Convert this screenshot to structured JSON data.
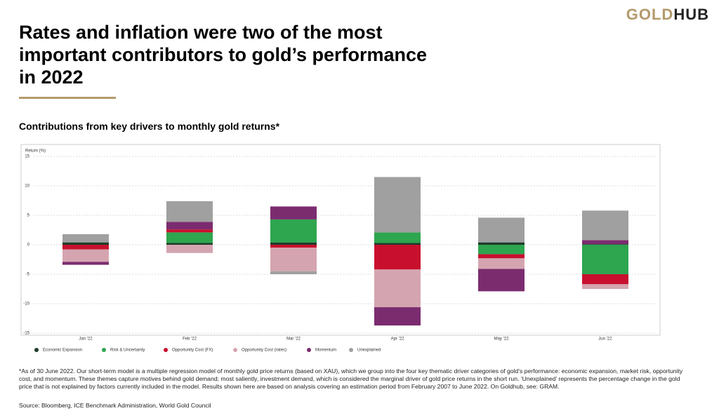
{
  "header": {
    "logo_gold": "GOLD",
    "logo_hub": "HUB",
    "title": "Rates and inflation were two of the most important contributors to gold’s performance in 2022"
  },
  "chart_data": {
    "type": "bar",
    "stacked": true,
    "title": "Contributions from key drivers to monthly gold returns*",
    "y_label": "Return (%)",
    "categories": [
      "Jan '22",
      "Feb '22",
      "Mar '22",
      "Apr '22",
      "May '22",
      "Jun '22"
    ],
    "series": [
      {
        "name": "Economic Expansion",
        "color": "#1d3b29",
        "values": [
          0.4,
          0.3,
          0.4,
          0.3,
          0.4,
          0.1
        ]
      },
      {
        "name": "Risk & Uncertainty",
        "color": "#2ea54f",
        "values": [
          0,
          1.8,
          3.9,
          1.8,
          -1.6,
          -5.0
        ]
      },
      {
        "name": "Opportunity Cost (FX)",
        "color": "#c8102e",
        "values": [
          -0.8,
          0.5,
          -0.5,
          -4.2,
          -0.7,
          -1.7
        ]
      },
      {
        "name": "Opportunity Cost (rates)",
        "color": "#d4a5b0",
        "values": [
          -2.1,
          -1.4,
          -4.0,
          -6.4,
          -1.8,
          -0.8
        ]
      },
      {
        "name": "Momentum",
        "color": "#7b2c6f",
        "values": [
          -0.5,
          1.3,
          2.2,
          -3.1,
          -3.8,
          0.7
        ]
      },
      {
        "name": "Unexplained",
        "color": "#a0a0a0",
        "values": [
          1.4,
          3.5,
          -0.5,
          9.4,
          4.2,
          5.0
        ]
      }
    ],
    "ylim": [
      -15,
      15
    ],
    "yticks": [
      -15,
      -10,
      -5,
      0,
      5,
      10,
      15
    ],
    "grid": true,
    "legend": "bottom"
  },
  "footnote": "*As of 30 June 2022. Our short-term model is a multiple regression model of monthly gold price returns (based on XAU), which we group into the four key thematic driver categories of gold’s performance: economic expansion, market risk, opportunity cost, and momentum. These themes capture motives behind gold demand; most saliently, investment demand, which is considered the marginal driver of gold price returns in the short run. ‘Unexplained’ represents the percentage change in the gold price that is not explained by factors currently included in the model. Results shown here are based on analysis covering an estimation period from February 2007 to June 2022. On Goldhub, see: GRAM.",
  "source": "Source: Bloomberg, ICE Benchmark Administration, World Gold Council"
}
